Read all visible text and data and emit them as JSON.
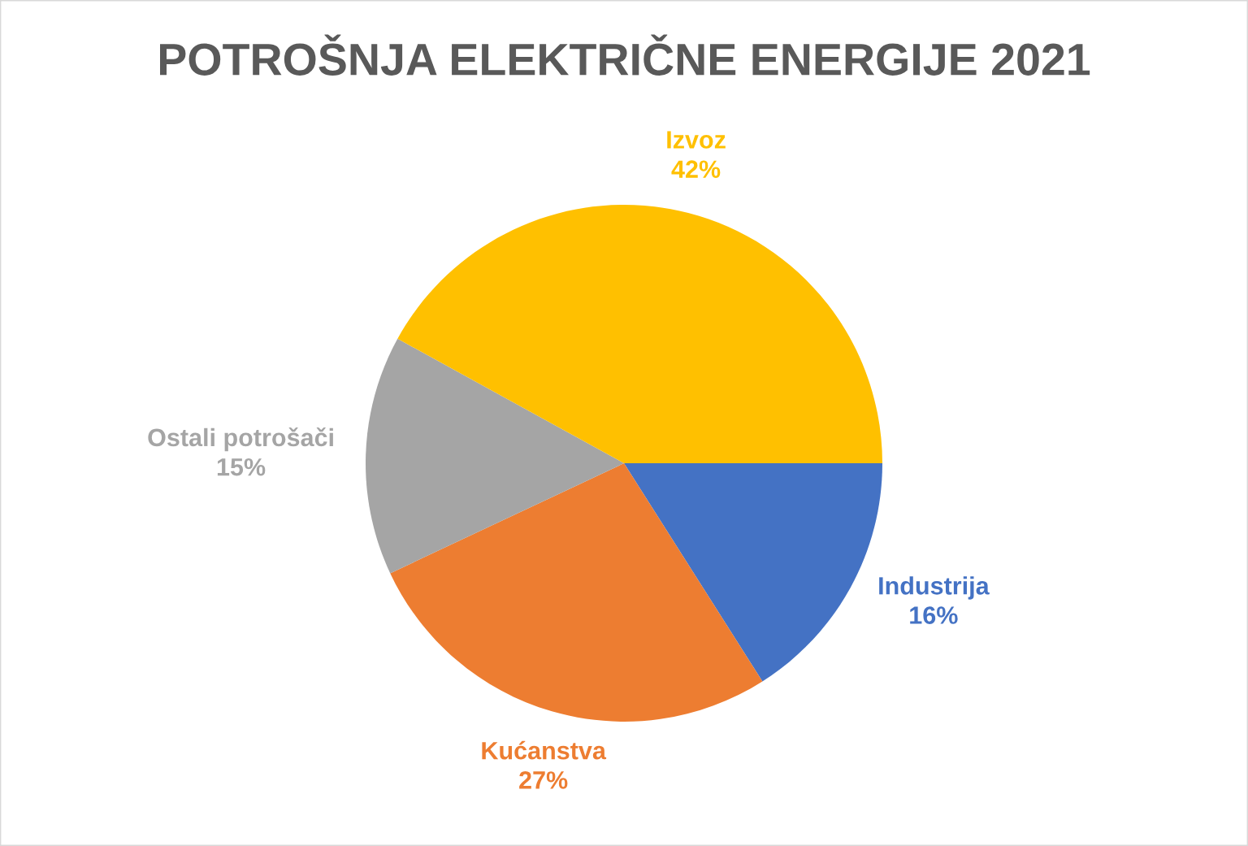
{
  "chart_data": {
    "type": "pie",
    "title": "POTROŠNJA ELEKTRIČNE ENERGIJE 2021",
    "categories": [
      "Industrija",
      "Kućanstva",
      "Ostali potrošači",
      "Izvoz"
    ],
    "values": [
      16,
      27,
      15,
      42
    ],
    "colors": [
      "#4472c4",
      "#ed7d31",
      "#a5a5a5",
      "#ffc000"
    ],
    "value_labels": [
      "16%",
      "27%",
      "15%",
      "42%"
    ]
  }
}
